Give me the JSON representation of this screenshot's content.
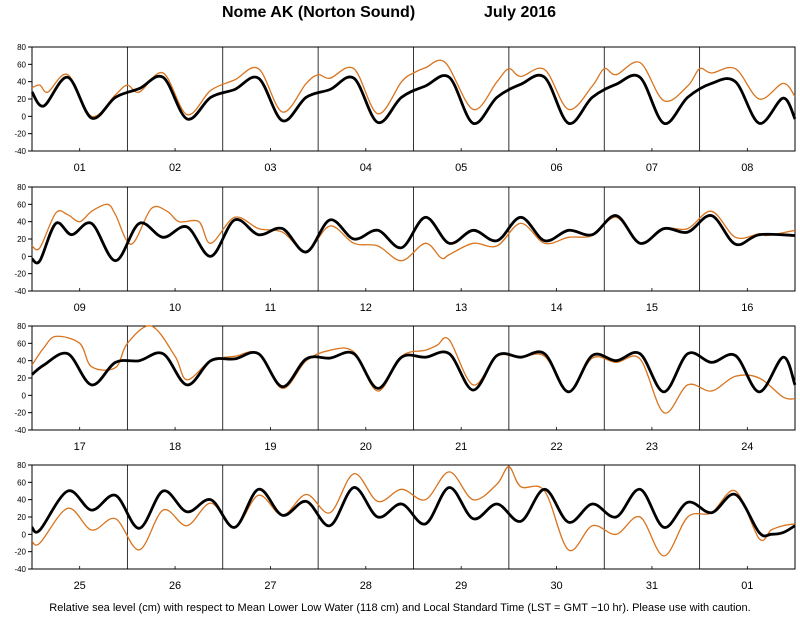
{
  "header": {
    "station": "Nome AK (Norton Sound)",
    "month": "July   2016"
  },
  "footer": "Relative sea level (cm) with respect to Mean Lower Low Water (118 cm) and Local Standard Time (LST = GMT −10 hr). Please use with caution.",
  "colors": {
    "predicted": "#000000",
    "observed": "#d9741f",
    "grid": "#000000"
  },
  "chart_data": {
    "type": "line",
    "y_unit": "cm (relative to MLLW)",
    "ylim": [
      -40,
      80
    ],
    "yticks": [
      -40,
      -20,
      0,
      20,
      40,
      60,
      80
    ],
    "grid": "vertical lines at midnight",
    "series_styles": [
      {
        "key": "predicted",
        "color": "#000000",
        "line": "thick"
      },
      {
        "key": "observed",
        "color": "#d9741f",
        "line": "thin"
      }
    ],
    "panels": [
      {
        "days": [
          "01",
          "02",
          "03",
          "04",
          "05",
          "06",
          "07",
          "08"
        ],
        "predicted": [
          [
            0,
            28
          ],
          [
            3,
            12
          ],
          [
            9,
            45
          ],
          [
            15,
            -2
          ],
          [
            21,
            22
          ],
          [
            27,
            32
          ],
          [
            33,
            45
          ],
          [
            39,
            -3
          ],
          [
            45,
            22
          ],
          [
            51,
            31
          ],
          [
            57,
            44
          ],
          [
            63,
            -5
          ],
          [
            69,
            22
          ],
          [
            75,
            31
          ],
          [
            81,
            44
          ],
          [
            87,
            -7
          ],
          [
            93,
            22
          ],
          [
            99,
            35
          ],
          [
            105,
            45
          ],
          [
            111,
            -8
          ],
          [
            117,
            22
          ],
          [
            123,
            37
          ],
          [
            129,
            45
          ],
          [
            135,
            -8
          ],
          [
            141,
            22
          ],
          [
            147,
            37
          ],
          [
            153,
            45
          ],
          [
            159,
            -8
          ],
          [
            165,
            22
          ],
          [
            171,
            38
          ],
          [
            177,
            40
          ],
          [
            183,
            -8
          ],
          [
            189,
            21
          ],
          [
            192,
            -3
          ]
        ],
        "observed": [
          [
            0,
            33
          ],
          [
            2,
            36
          ],
          [
            4,
            28
          ],
          [
            9,
            48
          ],
          [
            15,
            0
          ],
          [
            21,
            25
          ],
          [
            24,
            36
          ],
          [
            27,
            28
          ],
          [
            33,
            50
          ],
          [
            39,
            2
          ],
          [
            45,
            30
          ],
          [
            51,
            42
          ],
          [
            57,
            55
          ],
          [
            63,
            5
          ],
          [
            69,
            38
          ],
          [
            72,
            48
          ],
          [
            75,
            44
          ],
          [
            81,
            55
          ],
          [
            87,
            3
          ],
          [
            93,
            40
          ],
          [
            96,
            50
          ],
          [
            99,
            56
          ],
          [
            104,
            62
          ],
          [
            111,
            8
          ],
          [
            117,
            40
          ],
          [
            120,
            55
          ],
          [
            123,
            46
          ],
          [
            129,
            54
          ],
          [
            135,
            8
          ],
          [
            141,
            35
          ],
          [
            144,
            55
          ],
          [
            147,
            48
          ],
          [
            153,
            62
          ],
          [
            159,
            18
          ],
          [
            165,
            35
          ],
          [
            168,
            55
          ],
          [
            171,
            50
          ],
          [
            177,
            55
          ],
          [
            183,
            20
          ],
          [
            189,
            38
          ],
          [
            192,
            23
          ]
        ]
      },
      {
        "days": [
          "09",
          "10",
          "11",
          "12",
          "13",
          "14",
          "15",
          "16"
        ],
        "predicted": [
          [
            0,
            -3
          ],
          [
            2,
            -5
          ],
          [
            6,
            38
          ],
          [
            10,
            25
          ],
          [
            15,
            38
          ],
          [
            21,
            -5
          ],
          [
            27,
            38
          ],
          [
            33,
            22
          ],
          [
            39,
            34
          ],
          [
            45,
            0
          ],
          [
            51,
            42
          ],
          [
            57,
            25
          ],
          [
            63,
            32
          ],
          [
            69,
            5
          ],
          [
            75,
            42
          ],
          [
            81,
            20
          ],
          [
            87,
            30
          ],
          [
            93,
            10
          ],
          [
            99,
            45
          ],
          [
            105,
            15
          ],
          [
            111,
            30
          ],
          [
            117,
            18
          ],
          [
            123,
            45
          ],
          [
            129,
            18
          ],
          [
            135,
            30
          ],
          [
            141,
            25
          ],
          [
            147,
            47
          ],
          [
            153,
            15
          ],
          [
            159,
            32
          ],
          [
            165,
            28
          ],
          [
            171,
            47
          ],
          [
            177,
            14
          ],
          [
            183,
            25
          ],
          [
            192,
            24
          ]
        ],
        "observed": [
          [
            0,
            12
          ],
          [
            2,
            10
          ],
          [
            6,
            50
          ],
          [
            9,
            48
          ],
          [
            12,
            40
          ],
          [
            15,
            52
          ],
          [
            19,
            60
          ],
          [
            21,
            48
          ],
          [
            25,
            14
          ],
          [
            30,
            55
          ],
          [
            34,
            52
          ],
          [
            37,
            40
          ],
          [
            42,
            40
          ],
          [
            45,
            15
          ],
          [
            51,
            45
          ],
          [
            57,
            32
          ],
          [
            63,
            28
          ],
          [
            69,
            6
          ],
          [
            75,
            35
          ],
          [
            81,
            15
          ],
          [
            87,
            12
          ],
          [
            93,
            -5
          ],
          [
            99,
            15
          ],
          [
            103,
            -2
          ],
          [
            105,
            2
          ],
          [
            111,
            15
          ],
          [
            117,
            12
          ],
          [
            123,
            38
          ],
          [
            129,
            15
          ],
          [
            135,
            22
          ],
          [
            141,
            24
          ],
          [
            147,
            45
          ],
          [
            153,
            15
          ],
          [
            159,
            32
          ],
          [
            165,
            32
          ],
          [
            171,
            52
          ],
          [
            177,
            22
          ],
          [
            183,
            26
          ],
          [
            185,
            24
          ],
          [
            192,
            30
          ]
        ]
      },
      {
        "days": [
          "17",
          "18",
          "19",
          "20",
          "21",
          "22",
          "23",
          "24"
        ],
        "predicted": [
          [
            0,
            24
          ],
          [
            3,
            35
          ],
          [
            9,
            48
          ],
          [
            15,
            12
          ],
          [
            21,
            38
          ],
          [
            27,
            40
          ],
          [
            33,
            48
          ],
          [
            39,
            12
          ],
          [
            45,
            40
          ],
          [
            51,
            42
          ],
          [
            57,
            48
          ],
          [
            63,
            10
          ],
          [
            69,
            42
          ],
          [
            75,
            43
          ],
          [
            81,
            48
          ],
          [
            87,
            8
          ],
          [
            93,
            44
          ],
          [
            99,
            44
          ],
          [
            105,
            48
          ],
          [
            111,
            6
          ],
          [
            117,
            46
          ],
          [
            123,
            44
          ],
          [
            129,
            48
          ],
          [
            135,
            4
          ],
          [
            141,
            46
          ],
          [
            147,
            40
          ],
          [
            153,
            48
          ],
          [
            159,
            4
          ],
          [
            165,
            48
          ],
          [
            171,
            38
          ],
          [
            177,
            46
          ],
          [
            183,
            4
          ],
          [
            189,
            44
          ],
          [
            192,
            12
          ]
        ],
        "observed": [
          [
            0,
            35
          ],
          [
            3,
            55
          ],
          [
            6,
            68
          ],
          [
            12,
            60
          ],
          [
            15,
            33
          ],
          [
            21,
            32
          ],
          [
            24,
            60
          ],
          [
            30,
            80
          ],
          [
            36,
            45
          ],
          [
            39,
            18
          ],
          [
            45,
            40
          ],
          [
            51,
            45
          ],
          [
            57,
            48
          ],
          [
            63,
            8
          ],
          [
            69,
            40
          ],
          [
            75,
            52
          ],
          [
            81,
            50
          ],
          [
            87,
            5
          ],
          [
            93,
            45
          ],
          [
            99,
            52
          ],
          [
            102,
            58
          ],
          [
            105,
            64
          ],
          [
            111,
            12
          ],
          [
            117,
            45
          ],
          [
            123,
            44
          ],
          [
            129,
            45
          ],
          [
            135,
            5
          ],
          [
            141,
            43
          ],
          [
            147,
            38
          ],
          [
            153,
            42
          ],
          [
            159,
            -20
          ],
          [
            165,
            12
          ],
          [
            171,
            5
          ],
          [
            177,
            22
          ],
          [
            183,
            20
          ],
          [
            189,
            -2
          ],
          [
            192,
            -4
          ]
        ]
      },
      {
        "days": [
          "25",
          "26",
          "27",
          "28",
          "29",
          "30",
          "31",
          "01"
        ],
        "predicted": [
          [
            0,
            8
          ],
          [
            2,
            5
          ],
          [
            9,
            50
          ],
          [
            15,
            28
          ],
          [
            21,
            45
          ],
          [
            27,
            7
          ],
          [
            33,
            50
          ],
          [
            39,
            26
          ],
          [
            45,
            40
          ],
          [
            51,
            8
          ],
          [
            57,
            52
          ],
          [
            63,
            22
          ],
          [
            69,
            38
          ],
          [
            75,
            10
          ],
          [
            81,
            54
          ],
          [
            87,
            20
          ],
          [
            93,
            35
          ],
          [
            99,
            12
          ],
          [
            105,
            54
          ],
          [
            111,
            18
          ],
          [
            117,
            35
          ],
          [
            123,
            15
          ],
          [
            129,
            52
          ],
          [
            135,
            14
          ],
          [
            141,
            35
          ],
          [
            147,
            20
          ],
          [
            153,
            52
          ],
          [
            159,
            8
          ],
          [
            165,
            37
          ],
          [
            171,
            25
          ],
          [
            177,
            46
          ],
          [
            183,
            2
          ],
          [
            186,
            0
          ],
          [
            189,
            2
          ],
          [
            192,
            10
          ]
        ],
        "observed": [
          [
            0,
            -8
          ],
          [
            2,
            -10
          ],
          [
            9,
            30
          ],
          [
            15,
            5
          ],
          [
            21,
            18
          ],
          [
            27,
            -18
          ],
          [
            33,
            28
          ],
          [
            39,
            10
          ],
          [
            45,
            36
          ],
          [
            51,
            8
          ],
          [
            57,
            45
          ],
          [
            63,
            22
          ],
          [
            69,
            46
          ],
          [
            75,
            25
          ],
          [
            81,
            70
          ],
          [
            87,
            38
          ],
          [
            93,
            52
          ],
          [
            99,
            40
          ],
          [
            105,
            72
          ],
          [
            111,
            40
          ],
          [
            117,
            58
          ],
          [
            120,
            78
          ],
          [
            123,
            55
          ],
          [
            129,
            50
          ],
          [
            135,
            -18
          ],
          [
            141,
            10
          ],
          [
            147,
            0
          ],
          [
            153,
            20
          ],
          [
            159,
            -25
          ],
          [
            165,
            20
          ],
          [
            171,
            25
          ],
          [
            177,
            50
          ],
          [
            183,
            -5
          ],
          [
            186,
            5
          ],
          [
            189,
            10
          ],
          [
            192,
            12
          ]
        ]
      }
    ]
  }
}
